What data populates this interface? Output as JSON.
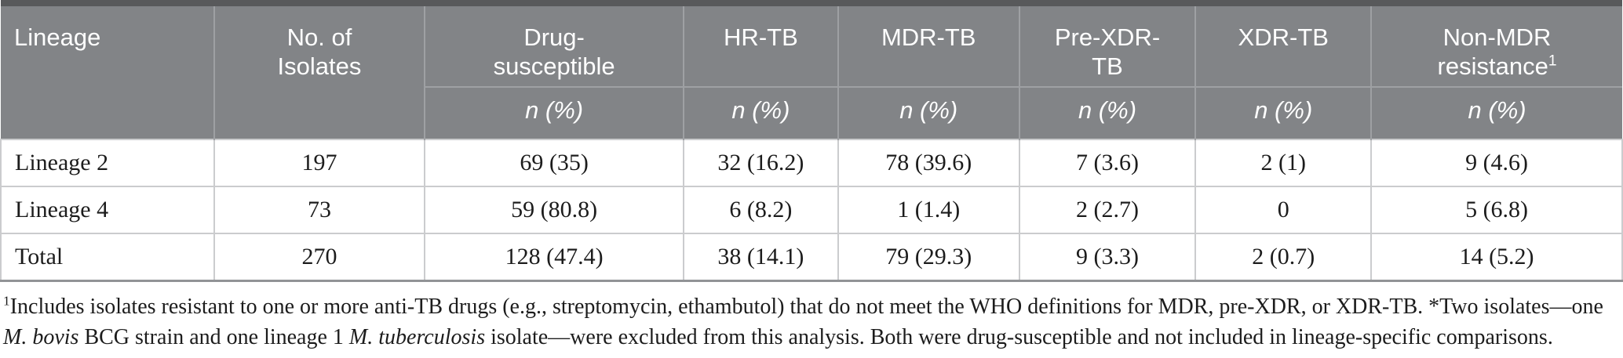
{
  "colors": {
    "top_border": "#58595b",
    "header_bg": "#828487",
    "header_line": "#9ea0a3",
    "body_line": "#cbccce",
    "bottom_border": "#919396",
    "header_text": "#ffffff",
    "body_text": "#1c1c1c"
  },
  "table": {
    "columns": [
      {
        "label": "Lineage"
      },
      {
        "label": "No. of Isolates"
      },
      {
        "label": "Drug-susceptible",
        "sub": "n (%)"
      },
      {
        "label": "HR-TB",
        "sub": "n (%)"
      },
      {
        "label": "MDR-TB",
        "sub": "n (%)"
      },
      {
        "label": "Pre-XDR-TB",
        "sub": "n (%)"
      },
      {
        "label": "XDR-TB",
        "sub": "n (%)"
      },
      {
        "label": "Non-MDR resistance",
        "sup": "1",
        "sub": "n (%)"
      }
    ],
    "rows": [
      {
        "cells": [
          "Lineage 2",
          "197",
          "69 (35)",
          "32 (16.2)",
          "78 (39.6)",
          "7 (3.6)",
          "2 (1)",
          "9 (4.6)"
        ]
      },
      {
        "cells": [
          "Lineage 4",
          "73",
          "59 (80.8)",
          "6 (8.2)",
          "1 (1.4)",
          "2 (2.7)",
          "0",
          "5 (6.8)"
        ]
      },
      {
        "cells": [
          "Total",
          "270",
          "128 (47.4)",
          "38 (14.1)",
          "79 (29.3)",
          "9 (3.3)",
          "2 (0.7)",
          "14 (5.2)"
        ]
      }
    ]
  },
  "footnote": {
    "segments": [
      {
        "text": "1",
        "sup": true
      },
      {
        "text": "Includes isolates resistant to one or more anti-TB drugs (e.g., streptomycin, ethambutol) that do not meet the WHO definitions for MDR, pre-XDR, or XDR-TB. *Two isolates—one "
      },
      {
        "text": "M. bovis",
        "italic": true
      },
      {
        "text": " BCG strain and one lineage 1 "
      },
      {
        "text": "M. tuberculosis",
        "italic": true
      },
      {
        "text": " isolate—were excluded from this analysis. Both were drug-susceptible and not included in lineage-specific comparisons."
      }
    ]
  }
}
